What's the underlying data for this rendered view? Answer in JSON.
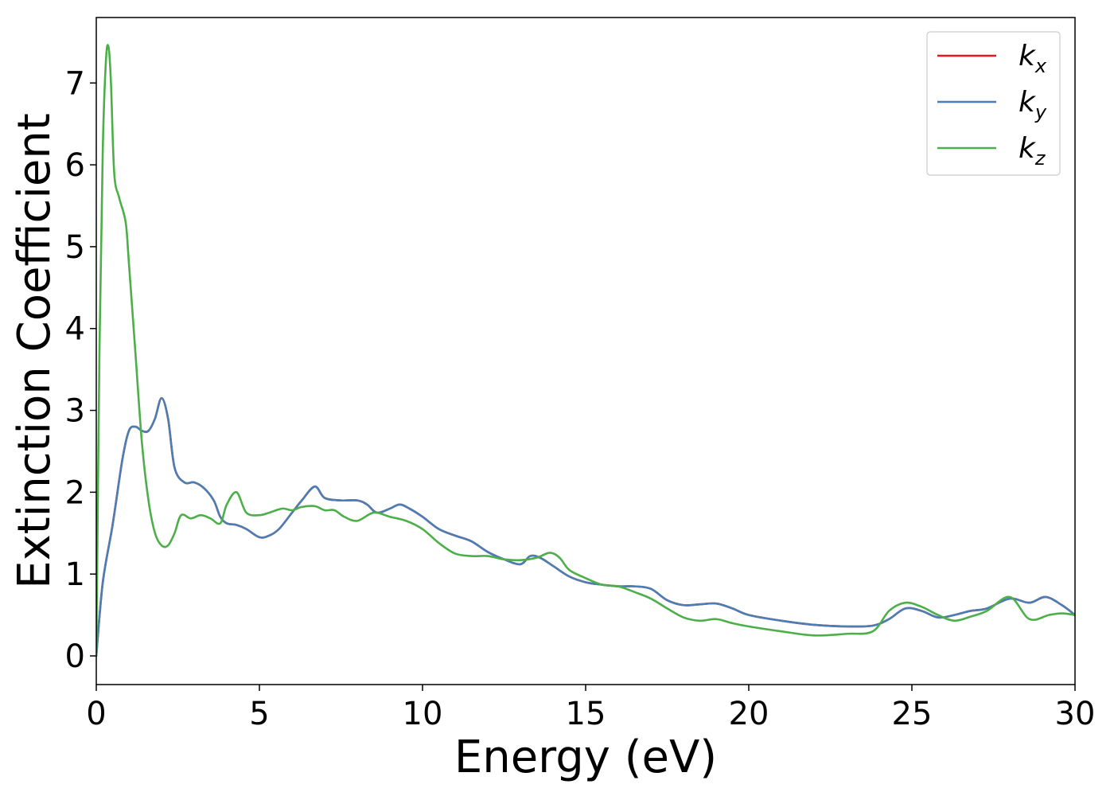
{
  "chart_data": {
    "type": "line",
    "xlabel": "Energy (eV)",
    "ylabel": "Extinction Coefficient",
    "xlim": [
      0,
      30
    ],
    "ylim": [
      -0.35,
      7.8
    ],
    "xticks": [
      0,
      5,
      10,
      15,
      20,
      25,
      30
    ],
    "xtick_labels": [
      "0",
      "5",
      "10",
      "15",
      "20",
      "25",
      "30"
    ],
    "yticks": [
      0,
      1,
      2,
      3,
      4,
      5,
      6,
      7
    ],
    "ytick_labels": [
      "0",
      "1",
      "2",
      "3",
      "4",
      "5",
      "6",
      "7"
    ],
    "grid": false,
    "legend_position": "top-right",
    "series": [
      {
        "name": "k",
        "subscript": "x",
        "color": "#e41a1c",
        "x": [
          0,
          0.2,
          0.5,
          0.8,
          1.0,
          1.2,
          1.4,
          1.6,
          1.8,
          2.0,
          2.2,
          2.4,
          2.7,
          3.0,
          3.3,
          3.6,
          3.8,
          4.0,
          4.3,
          4.6,
          5.0,
          5.3,
          5.6,
          6.0,
          6.3,
          6.7,
          7.0,
          7.5,
          8.0,
          8.3,
          8.6,
          9.0,
          9.3,
          9.6,
          10.0,
          10.5,
          11.0,
          11.5,
          12.0,
          12.5,
          13.0,
          13.3,
          13.6,
          14.0,
          14.5,
          15.0,
          15.5,
          16.0,
          16.5,
          17.0,
          17.5,
          18.0,
          18.5,
          19.0,
          19.5,
          20.0,
          21.0,
          22.0,
          23.0,
          23.8,
          24.3,
          24.8,
          25.3,
          25.8,
          26.3,
          26.8,
          27.3,
          28.0,
          28.6,
          29.1,
          29.6,
          30.0
        ],
        "values": [
          0,
          0.9,
          1.6,
          2.4,
          2.75,
          2.8,
          2.75,
          2.75,
          2.9,
          3.15,
          2.9,
          2.3,
          2.12,
          2.12,
          2.05,
          1.9,
          1.7,
          1.62,
          1.6,
          1.55,
          1.45,
          1.47,
          1.55,
          1.75,
          1.9,
          2.07,
          1.93,
          1.9,
          1.9,
          1.85,
          1.75,
          1.8,
          1.85,
          1.8,
          1.7,
          1.55,
          1.47,
          1.4,
          1.27,
          1.18,
          1.12,
          1.22,
          1.2,
          1.1,
          0.97,
          0.9,
          0.87,
          0.85,
          0.85,
          0.82,
          0.68,
          0.62,
          0.63,
          0.64,
          0.58,
          0.5,
          0.43,
          0.38,
          0.36,
          0.37,
          0.45,
          0.58,
          0.55,
          0.47,
          0.5,
          0.55,
          0.58,
          0.7,
          0.65,
          0.72,
          0.62,
          0.5
        ]
      },
      {
        "name": "k",
        "subscript": "y",
        "color": "#4a7eb5",
        "x": [
          0,
          0.2,
          0.5,
          0.8,
          1.0,
          1.2,
          1.4,
          1.6,
          1.8,
          2.0,
          2.2,
          2.4,
          2.7,
          3.0,
          3.3,
          3.6,
          3.8,
          4.0,
          4.3,
          4.6,
          5.0,
          5.3,
          5.6,
          6.0,
          6.3,
          6.7,
          7.0,
          7.5,
          8.0,
          8.3,
          8.6,
          9.0,
          9.3,
          9.6,
          10.0,
          10.5,
          11.0,
          11.5,
          12.0,
          12.5,
          13.0,
          13.3,
          13.6,
          14.0,
          14.5,
          15.0,
          15.5,
          16.0,
          16.5,
          17.0,
          17.5,
          18.0,
          18.5,
          19.0,
          19.5,
          20.0,
          21.0,
          22.0,
          23.0,
          23.8,
          24.3,
          24.8,
          25.3,
          25.8,
          26.3,
          26.8,
          27.3,
          28.0,
          28.6,
          29.1,
          29.6,
          30.0
        ],
        "values": [
          0,
          0.9,
          1.6,
          2.4,
          2.75,
          2.8,
          2.75,
          2.75,
          2.9,
          3.15,
          2.9,
          2.3,
          2.12,
          2.12,
          2.05,
          1.9,
          1.7,
          1.62,
          1.6,
          1.55,
          1.45,
          1.47,
          1.55,
          1.75,
          1.9,
          2.07,
          1.93,
          1.9,
          1.9,
          1.85,
          1.75,
          1.8,
          1.85,
          1.8,
          1.7,
          1.55,
          1.47,
          1.4,
          1.27,
          1.18,
          1.12,
          1.22,
          1.2,
          1.1,
          0.97,
          0.9,
          0.87,
          0.85,
          0.85,
          0.82,
          0.68,
          0.62,
          0.63,
          0.64,
          0.58,
          0.5,
          0.43,
          0.38,
          0.36,
          0.37,
          0.45,
          0.58,
          0.55,
          0.47,
          0.5,
          0.55,
          0.58,
          0.7,
          0.65,
          0.72,
          0.62,
          0.5
        ]
      },
      {
        "name": "k",
        "subscript": "z",
        "color": "#4daf4a",
        "x": [
          0,
          0.1,
          0.2,
          0.3,
          0.38,
          0.45,
          0.55,
          0.7,
          0.9,
          1.0,
          1.2,
          1.4,
          1.6,
          1.8,
          2.0,
          2.2,
          2.4,
          2.6,
          2.9,
          3.2,
          3.5,
          3.8,
          4.0,
          4.3,
          4.6,
          5.0,
          5.3,
          5.7,
          6.0,
          6.3,
          6.7,
          7.0,
          7.3,
          7.6,
          8.0,
          8.5,
          9.0,
          9.5,
          10.0,
          10.5,
          11.0,
          11.5,
          12.0,
          12.5,
          13.0,
          13.5,
          13.9,
          14.2,
          14.5,
          15.0,
          15.5,
          16.0,
          16.5,
          17.0,
          17.5,
          18.0,
          18.5,
          19.0,
          19.5,
          20.0,
          21.0,
          22.0,
          23.0,
          23.8,
          24.3,
          24.8,
          25.3,
          25.8,
          26.3,
          26.8,
          27.3,
          28.0,
          28.6,
          29.2,
          29.6,
          30.0
        ],
        "values": [
          0,
          3.8,
          6.2,
          7.3,
          7.43,
          7.0,
          5.9,
          5.6,
          5.3,
          4.8,
          3.7,
          2.6,
          1.9,
          1.5,
          1.35,
          1.35,
          1.5,
          1.72,
          1.68,
          1.72,
          1.68,
          1.62,
          1.85,
          2.0,
          1.75,
          1.72,
          1.75,
          1.8,
          1.78,
          1.82,
          1.83,
          1.78,
          1.78,
          1.7,
          1.65,
          1.75,
          1.7,
          1.65,
          1.55,
          1.38,
          1.25,
          1.22,
          1.22,
          1.18,
          1.17,
          1.2,
          1.26,
          1.2,
          1.05,
          0.95,
          0.87,
          0.85,
          0.78,
          0.7,
          0.58,
          0.47,
          0.43,
          0.45,
          0.4,
          0.36,
          0.3,
          0.25,
          0.27,
          0.3,
          0.55,
          0.65,
          0.6,
          0.5,
          0.43,
          0.48,
          0.55,
          0.72,
          0.45,
          0.5,
          0.52,
          0.5
        ]
      }
    ]
  }
}
